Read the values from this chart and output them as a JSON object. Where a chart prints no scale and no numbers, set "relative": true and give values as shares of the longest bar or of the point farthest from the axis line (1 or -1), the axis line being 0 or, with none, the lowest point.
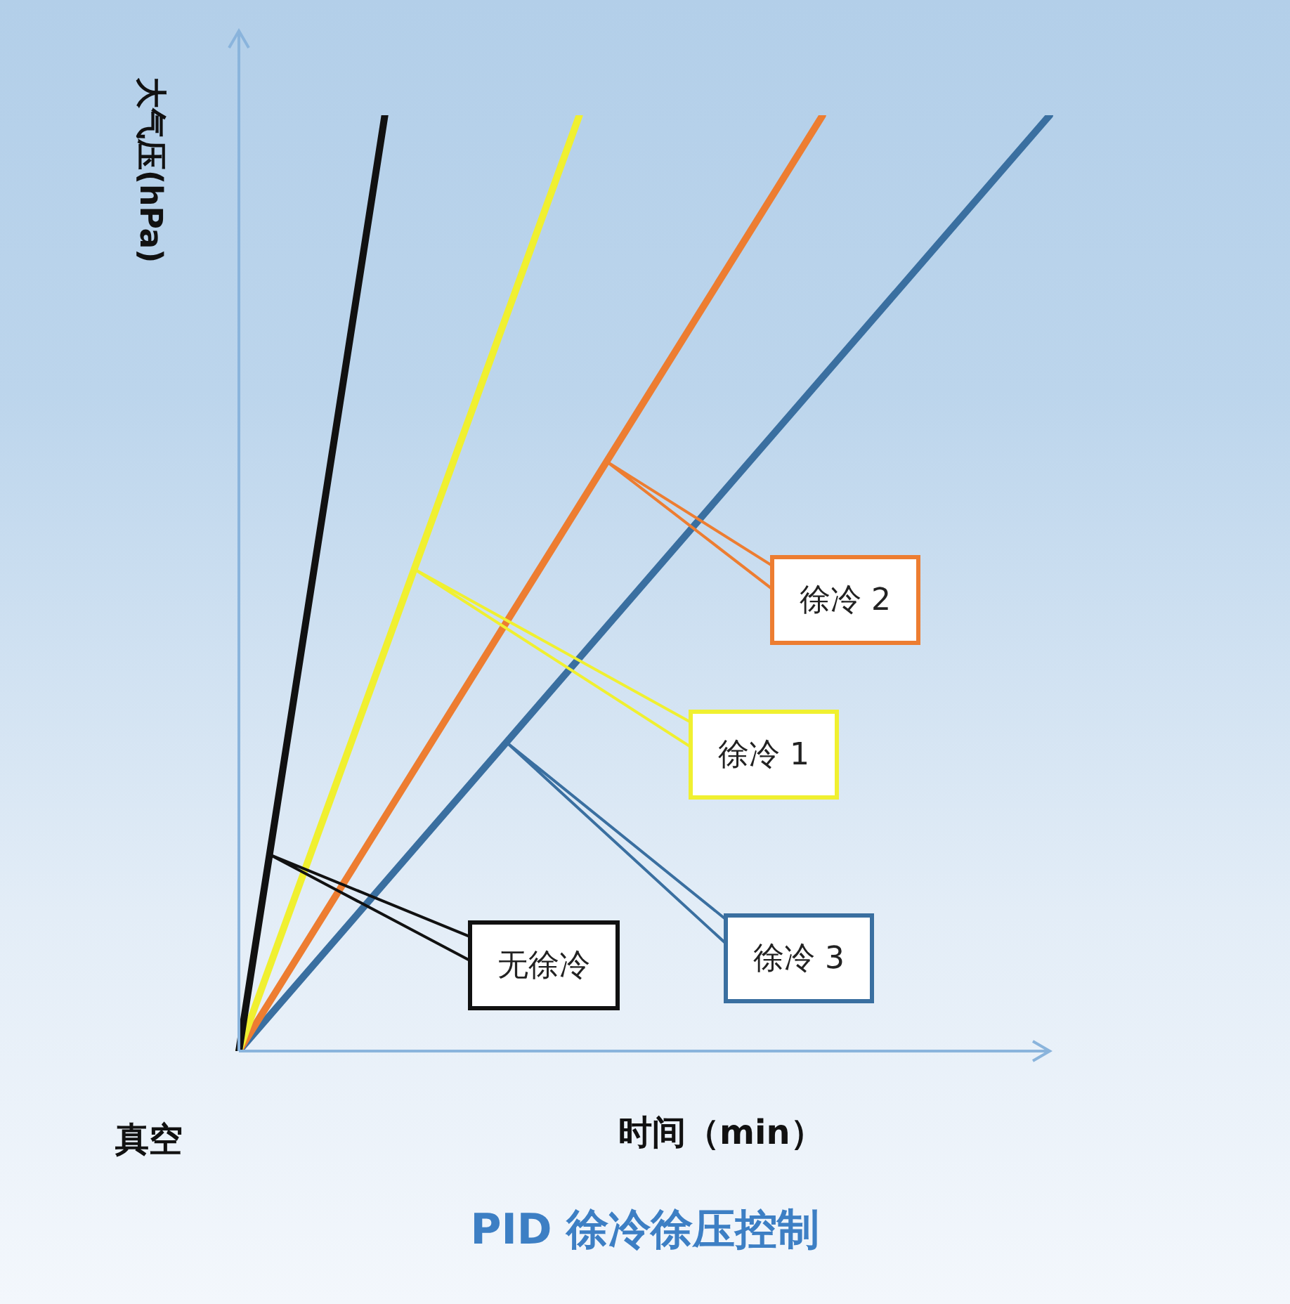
{
  "chart_data": {
    "type": "line",
    "relative": true,
    "title": "PID 徐冷徐压控制",
    "xlabel": "时间（min）",
    "ylabel": "大气压(hPa)",
    "annotations": [
      "真空"
    ],
    "legend": false,
    "marker": "none",
    "line_style": "solid",
    "categories": [
      null,
      null,
      null,
      null,
      null,
      null,
      null,
      null,
      null,
      null,
      null,
      null,
      null,
      null,
      null,
      null,
      null,
      null,
      null,
      null,
      null,
      null,
      null,
      null,
      null,
      null,
      null,
      null,
      null,
      null,
      null,
      null,
      null,
      null,
      null,
      null,
      null,
      null,
      null,
      null,
      null,
      null,
      null,
      null,
      null,
      null,
      null,
      null,
      null,
      null,
      null
    ],
    "series": [
      {
        "name": "无徐冷",
        "color": "#111111",
        "values": [
          0,
          null,
          null,
          null,
          null,
          null,
          null,
          null,
          null,
          1,
          null,
          null,
          null,
          null,
          null,
          null,
          null,
          null,
          null,
          null,
          null,
          null,
          null,
          null,
          null,
          null,
          null,
          null,
          null,
          null,
          null,
          null,
          null,
          null,
          null,
          null,
          null,
          null,
          null,
          null,
          null,
          null,
          null,
          null,
          null,
          null,
          null,
          null,
          null,
          null,
          null
        ]
      },
      {
        "name": "徐冷 1",
        "color": "#f0f030",
        "values": [
          0,
          null,
          null,
          null,
          null,
          null,
          null,
          null,
          null,
          null,
          null,
          null,
          null,
          null,
          null,
          null,
          null,
          null,
          null,
          null,
          null,
          1,
          null,
          null,
          null,
          null,
          null,
          null,
          null,
          null,
          null,
          null,
          null,
          null,
          null,
          null,
          null,
          null,
          null,
          null,
          null,
          null,
          null,
          null,
          null,
          null,
          null,
          null,
          null,
          null,
          null
        ]
      },
      {
        "name": "徐冷 2",
        "color": "#ed7d31",
        "values": [
          0,
          null,
          null,
          null,
          null,
          null,
          null,
          null,
          null,
          null,
          null,
          null,
          null,
          null,
          null,
          null,
          null,
          null,
          null,
          null,
          null,
          null,
          null,
          null,
          null,
          null,
          null,
          null,
          null,
          null,
          null,
          null,
          null,
          null,
          null,
          null,
          1,
          null,
          null,
          null,
          null,
          null,
          null,
          null,
          null,
          null,
          null,
          null,
          null,
          null,
          null
        ]
      },
      {
        "name": "徐冷 3",
        "color": "#3a6fa0",
        "values": [
          0,
          null,
          null,
          null,
          null,
          null,
          null,
          null,
          null,
          null,
          null,
          null,
          null,
          null,
          null,
          null,
          null,
          null,
          null,
          null,
          null,
          null,
          null,
          null,
          null,
          null,
          null,
          null,
          null,
          null,
          null,
          null,
          null,
          null,
          null,
          null,
          null,
          null,
          null,
          null,
          null,
          null,
          null,
          null,
          null,
          null,
          null,
          null,
          null,
          null,
          1
        ]
      }
    ]
  }
}
